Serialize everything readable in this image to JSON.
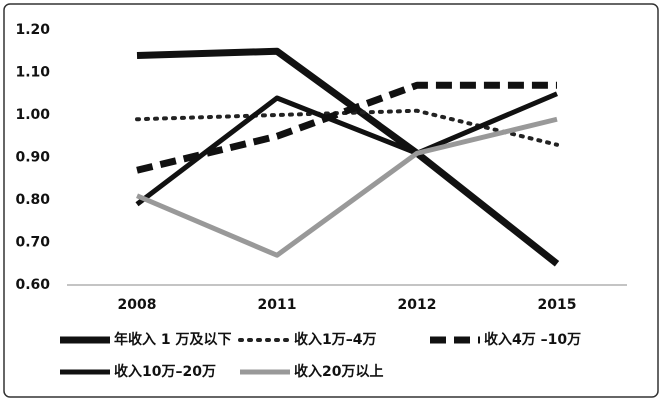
{
  "chart_data": {
    "type": "line",
    "categories": [
      "2008",
      "2011",
      "2012",
      "2015"
    ],
    "series": [
      {
        "name": "年收入 1 万及以下",
        "color": "#111111",
        "style": "solid",
        "width": 7,
        "values": [
          1.14,
          1.15,
          0.91,
          0.65
        ]
      },
      {
        "name": "收入1万–4万",
        "color": "#222222",
        "style": "dotted",
        "width": 4,
        "values": [
          0.99,
          1.0,
          1.01,
          0.93
        ]
      },
      {
        "name": "收入4万 –10万",
        "color": "#111111",
        "style": "dashed",
        "width": 7,
        "values": [
          0.87,
          0.95,
          1.07,
          1.07
        ]
      },
      {
        "name": "收入10万–20万",
        "color": "#111111",
        "style": "solid",
        "width": 5,
        "values": [
          0.79,
          1.04,
          0.91,
          1.05
        ]
      },
      {
        "name": "收入20万以上",
        "color": "#999999",
        "style": "solid",
        "width": 5,
        "values": [
          0.81,
          0.67,
          0.91,
          0.99
        ]
      }
    ],
    "ylim": [
      0.6,
      1.2
    ],
    "yticks": [
      {
        "value": 0.6,
        "label": "0.60"
      },
      {
        "value": 0.7,
        "label": "0.70"
      },
      {
        "value": 0.8,
        "label": "0.80"
      },
      {
        "value": 0.9,
        "label": "0.90"
      },
      {
        "value": 1.0,
        "label": "1.00"
      },
      {
        "value": 1.1,
        "label": "1.10"
      },
      {
        "value": 1.2,
        "label": "1.20"
      }
    ],
    "grid": false
  }
}
